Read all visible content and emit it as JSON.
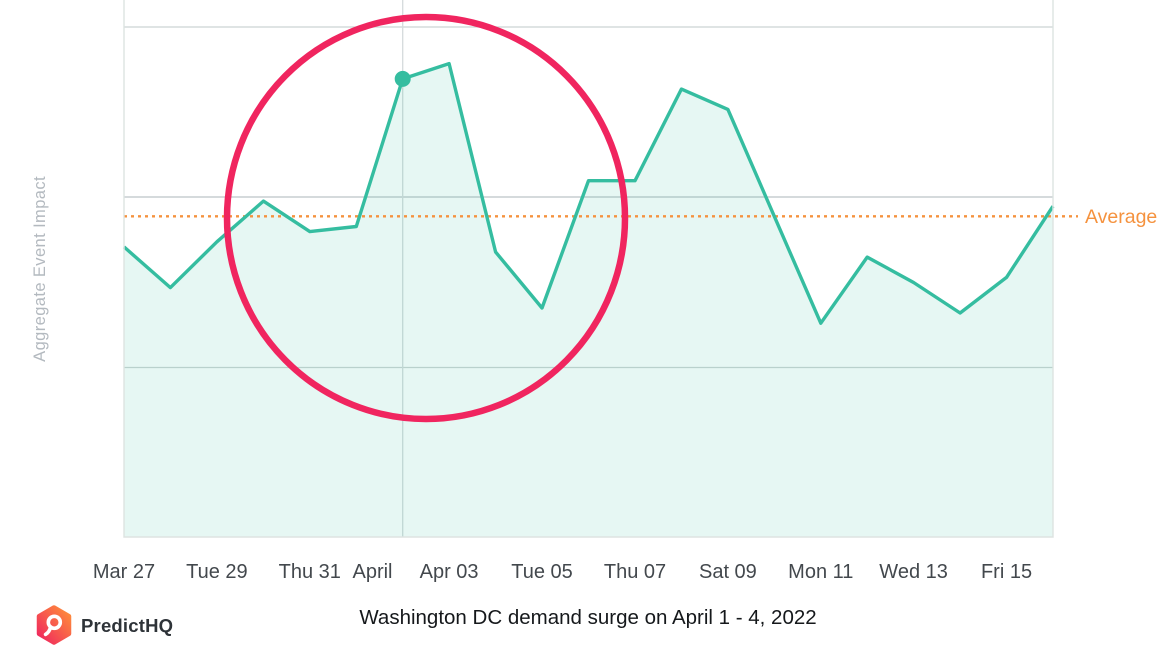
{
  "brand": {
    "name": "PredictHQ",
    "logo_gradient_start": "#FF9139",
    "logo_gradient_end": "#EF2360"
  },
  "caption": "Washington DC demand surge on April 1 - 4, 2022",
  "chart_data": {
    "type": "line",
    "title": "",
    "xlabel": "",
    "ylabel": "Aggregate Event Impact",
    "x": [
      "Mar 27",
      "Mar 28",
      "Mar 29",
      "Mar 30",
      "Mar 31",
      "Apr 01",
      "Apr 02",
      "Apr 03",
      "Apr 04",
      "Apr 05",
      "Apr 06",
      "Apr 07",
      "Apr 08",
      "Apr 09",
      "Apr 10",
      "Apr 11",
      "Apr 12",
      "Apr 13",
      "Apr 14",
      "Apr 15",
      "Apr 16"
    ],
    "values": [
      57,
      49,
      58,
      66,
      60,
      61,
      90,
      93,
      56,
      45,
      70,
      70,
      88,
      84,
      63,
      42,
      55,
      50,
      44,
      51,
      65
    ],
    "ylim": [
      0,
      105
    ],
    "grid": "horizontal",
    "x_tick_labels": [
      {
        "label": "Mar 27",
        "day": 0
      },
      {
        "label": "Tue 29",
        "day": 2
      },
      {
        "label": "Thu 31",
        "day": 4
      },
      {
        "label": "April",
        "day": 5.35
      },
      {
        "label": "Apr 03",
        "day": 7
      },
      {
        "label": "Tue 05",
        "day": 9
      },
      {
        "label": "Thu 07",
        "day": 11
      },
      {
        "label": "Sat 09",
        "day": 13
      },
      {
        "label": "Mon 11",
        "day": 15
      },
      {
        "label": "Wed 13",
        "day": 17
      },
      {
        "label": "Fri 15",
        "day": 19
      }
    ],
    "month_divider_day": 6,
    "series_color": "#35bda0",
    "area_opacity": 0.12,
    "average_line": {
      "label": "Average",
      "value": 63,
      "color": "#f5923e",
      "style": "dotted"
    },
    "marker": {
      "day": 6,
      "color": "#35bda0"
    },
    "annotation": {
      "shape": "circle",
      "color": "#f0255f",
      "highlights": "demand surge April 1 - 4"
    }
  }
}
